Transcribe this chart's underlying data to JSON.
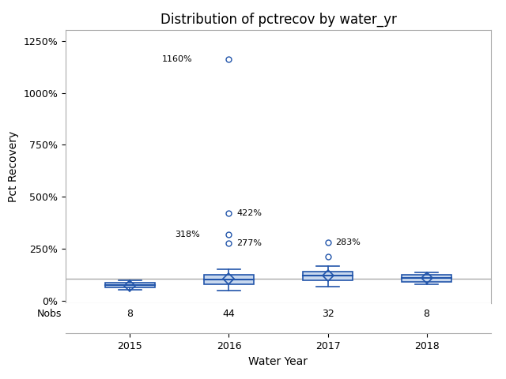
{
  "title": "Distribution of pctrecov by water_yr",
  "xlabel": "Water Year",
  "ylabel": "Pct Recovery",
  "years": [
    2015,
    2016,
    2017,
    2018
  ],
  "nobs": [
    8,
    44,
    32,
    8
  ],
  "boxes": {
    "2015": {
      "q1": 65,
      "median": 78,
      "q3": 90,
      "mean": 74,
      "whislo": 55,
      "whishi": 100
    },
    "2016": {
      "q1": 82,
      "median": 105,
      "q3": 128,
      "mean": 108,
      "whislo": 50,
      "whishi": 152
    },
    "2017": {
      "q1": 100,
      "median": 122,
      "q3": 143,
      "mean": 124,
      "whislo": 68,
      "whishi": 170
    },
    "2018": {
      "q1": 94,
      "median": 112,
      "q3": 128,
      "mean": 110,
      "whislo": 80,
      "whishi": 136
    }
  },
  "outliers": {
    "2015": [],
    "2016": [
      277,
      318,
      422,
      1160
    ],
    "2017": [
      215,
      283
    ],
    "2018": []
  },
  "reference_line": 108,
  "ylim_main": [
    -10,
    1300
  ],
  "yticks": [
    0,
    250,
    500,
    750,
    1000,
    1250
  ],
  "ytick_labels": [
    "0%",
    "250%",
    "500%",
    "750%",
    "1000%",
    "1250%"
  ],
  "box_color": "#2255AA",
  "box_fill": "#C8D8EE",
  "median_color": "#2255AA",
  "whisker_color": "#2255AA",
  "flier_marker_color": "#2255AA",
  "mean_marker_color": "#2255AA",
  "ref_line_color": "#AAAAAA",
  "spine_color": "#AAAAAA",
  "background_color": "#FFFFFF",
  "title_fontsize": 12,
  "label_fontsize": 10,
  "tick_fontsize": 9,
  "annot_fontsize": 8
}
